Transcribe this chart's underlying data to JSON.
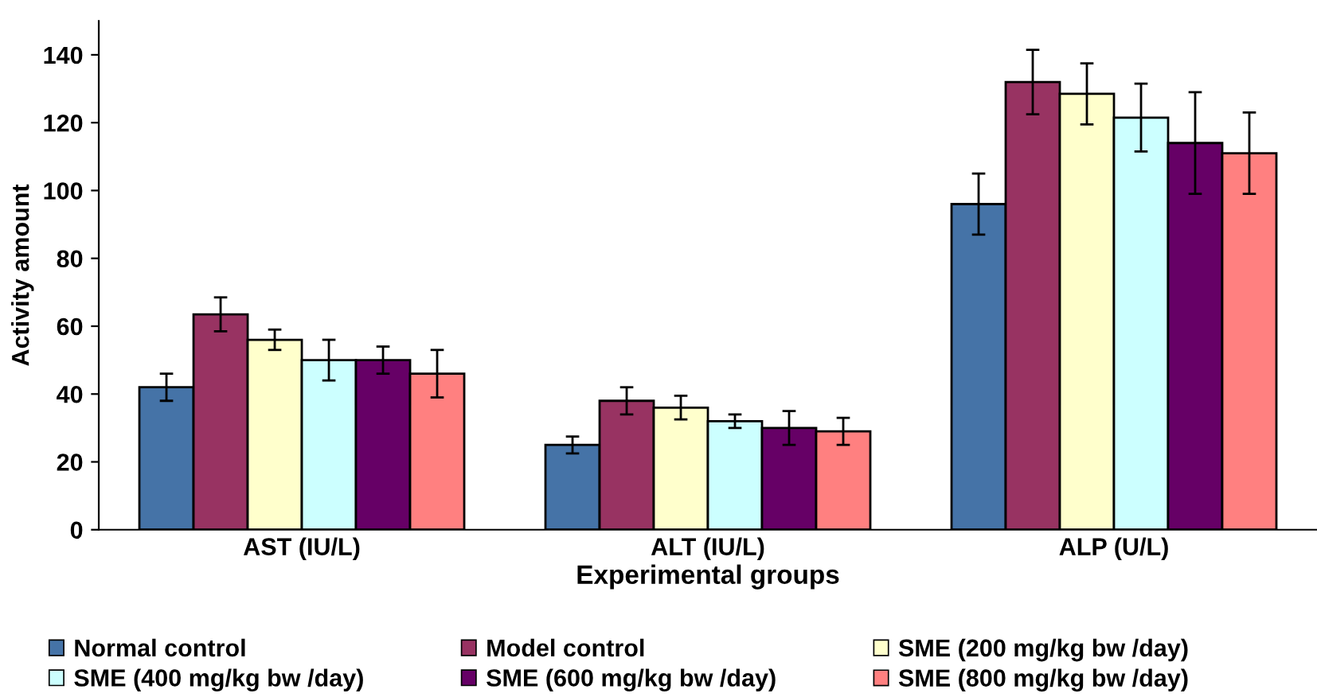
{
  "chart_data": {
    "type": "bar",
    "xlabel": "Experimental groups",
    "ylabel": "Activity amount",
    "categories": [
      "AST (IU/L)",
      "ALT (IU/L)",
      "ALP (U/L)"
    ],
    "series": [
      {
        "name": "Normal control",
        "color": "#4573a7",
        "values": [
          42,
          25,
          96
        ],
        "errors": [
          4,
          2.5,
          9
        ]
      },
      {
        "name": "Model control",
        "color": "#983362",
        "values": [
          63.5,
          38,
          132
        ],
        "errors": [
          5,
          4,
          9.5
        ]
      },
      {
        "name": "SME (200 mg/kg bw /day)",
        "color": "#ffffcc",
        "values": [
          56,
          36,
          128.5
        ],
        "errors": [
          3,
          3.5,
          9
        ]
      },
      {
        "name": "SME (400 mg/kg bw /day)",
        "color": "#ccffff",
        "values": [
          50,
          32,
          121.5
        ],
        "errors": [
          6,
          2,
          10
        ]
      },
      {
        "name": "SME (600 mg/kg bw /day)",
        "color": "#660066",
        "values": [
          50,
          30,
          114
        ],
        "errors": [
          4,
          5,
          15
        ]
      },
      {
        "name": "SME (800 mg/kg bw /day)",
        "color": "#ff8080",
        "values": [
          46,
          29,
          111
        ],
        "errors": [
          7,
          4,
          12
        ]
      }
    ],
    "ylim": [
      0,
      150
    ],
    "yticks": [
      0,
      20,
      40,
      60,
      80,
      100,
      120,
      140
    ],
    "grid": false,
    "legend": "bottom"
  }
}
